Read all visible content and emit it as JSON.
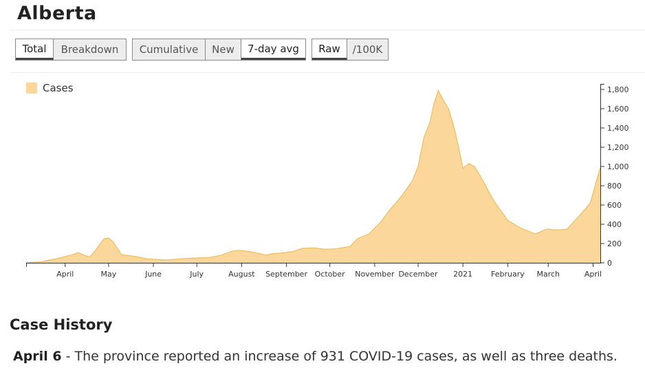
{
  "page": {
    "title": "Alberta"
  },
  "toggles": {
    "view": [
      {
        "label": "Total",
        "active": true
      },
      {
        "label": "Breakdown",
        "active": false
      }
    ],
    "measure": [
      {
        "label": "Cumulative",
        "active": false
      },
      {
        "label": "New",
        "active": false
      },
      {
        "label": "7-day avg",
        "active": true
      }
    ],
    "scale": [
      {
        "label": "Raw",
        "active": true
      },
      {
        "label": "/100K",
        "active": false
      }
    ]
  },
  "chart_data": {
    "type": "area",
    "series": [
      {
        "name": "Cases",
        "color": "#fbd79b",
        "stroke": "#eebc5e"
      }
    ],
    "ylim": [
      0,
      1800
    ],
    "yticks": [
      0,
      200,
      400,
      600,
      800,
      1000,
      1200,
      1400,
      1600,
      1800
    ],
    "ytick_labels": [
      "0",
      "200",
      "400",
      "600",
      "800",
      "1,000",
      "1,200",
      "1,400",
      "1,600",
      "1,800"
    ],
    "x_start": "2020-03-05",
    "x_end": "2021-04-06",
    "month_ticks": [
      {
        "date": "2020-04-01",
        "label": "April"
      },
      {
        "date": "2020-05-01",
        "label": "May"
      },
      {
        "date": "2020-06-01",
        "label": "June"
      },
      {
        "date": "2020-07-01",
        "label": "July"
      },
      {
        "date": "2020-08-01",
        "label": "August"
      },
      {
        "date": "2020-09-01",
        "label": "September"
      },
      {
        "date": "2020-10-01",
        "label": "October"
      },
      {
        "date": "2020-11-01",
        "label": "November"
      },
      {
        "date": "2020-12-01",
        "label": "December"
      },
      {
        "date": "2021-01-01",
        "label": "2021"
      },
      {
        "date": "2021-02-01",
        "label": "February"
      },
      {
        "date": "2021-03-01",
        "label": "March"
      },
      {
        "date": "2021-04-01",
        "label": "April"
      }
    ],
    "points": [
      [
        "2020-03-05",
        0
      ],
      [
        "2020-03-15",
        10
      ],
      [
        "2020-03-25",
        40
      ],
      [
        "2020-04-05",
        80
      ],
      [
        "2020-04-10",
        105
      ],
      [
        "2020-04-15",
        75
      ],
      [
        "2020-04-18",
        60
      ],
      [
        "2020-04-22",
        130
      ],
      [
        "2020-04-25",
        195
      ],
      [
        "2020-04-28",
        250
      ],
      [
        "2020-05-01",
        255
      ],
      [
        "2020-05-04",
        220
      ],
      [
        "2020-05-07",
        150
      ],
      [
        "2020-05-10",
        85
      ],
      [
        "2020-05-20",
        65
      ],
      [
        "2020-05-28",
        40
      ],
      [
        "2020-06-10",
        30
      ],
      [
        "2020-06-15",
        35
      ],
      [
        "2020-06-22",
        45
      ],
      [
        "2020-07-01",
        50
      ],
      [
        "2020-07-10",
        55
      ],
      [
        "2020-07-18",
        80
      ],
      [
        "2020-07-25",
        120
      ],
      [
        "2020-07-30",
        130
      ],
      [
        "2020-08-05",
        120
      ],
      [
        "2020-08-12",
        100
      ],
      [
        "2020-08-18",
        80
      ],
      [
        "2020-08-22",
        95
      ],
      [
        "2020-08-28",
        100
      ],
      [
        "2020-09-05",
        115
      ],
      [
        "2020-09-12",
        150
      ],
      [
        "2020-09-20",
        155
      ],
      [
        "2020-09-28",
        140
      ],
      [
        "2020-10-05",
        145
      ],
      [
        "2020-10-15",
        170
      ],
      [
        "2020-10-20",
        250
      ],
      [
        "2020-10-28",
        300
      ],
      [
        "2020-11-05",
        420
      ],
      [
        "2020-11-12",
        560
      ],
      [
        "2020-11-20",
        700
      ],
      [
        "2020-11-27",
        850
      ],
      [
        "2020-12-01",
        1000
      ],
      [
        "2020-12-05",
        1300
      ],
      [
        "2020-12-09",
        1450
      ],
      [
        "2020-12-12",
        1650
      ],
      [
        "2020-12-15",
        1790
      ],
      [
        "2020-12-18",
        1700
      ],
      [
        "2020-12-22",
        1600
      ],
      [
        "2020-12-26",
        1400
      ],
      [
        "2020-12-29",
        1200
      ],
      [
        "2021-01-01",
        980
      ],
      [
        "2021-01-05",
        1030
      ],
      [
        "2021-01-09",
        1000
      ],
      [
        "2021-01-15",
        850
      ],
      [
        "2021-01-22",
        650
      ],
      [
        "2021-02-01",
        440
      ],
      [
        "2021-02-10",
        360
      ],
      [
        "2021-02-20",
        300
      ],
      [
        "2021-02-28",
        350
      ],
      [
        "2021-03-08",
        340
      ],
      [
        "2021-03-14",
        350
      ],
      [
        "2021-03-22",
        480
      ],
      [
        "2021-03-30",
        620
      ],
      [
        "2021-04-06",
        990
      ]
    ]
  },
  "case_history": {
    "title": "Case History",
    "entries": [
      {
        "date": "April 6",
        "text": " - The province reported an increase of 931 COVID-19 cases, as well as three deaths."
      }
    ]
  }
}
